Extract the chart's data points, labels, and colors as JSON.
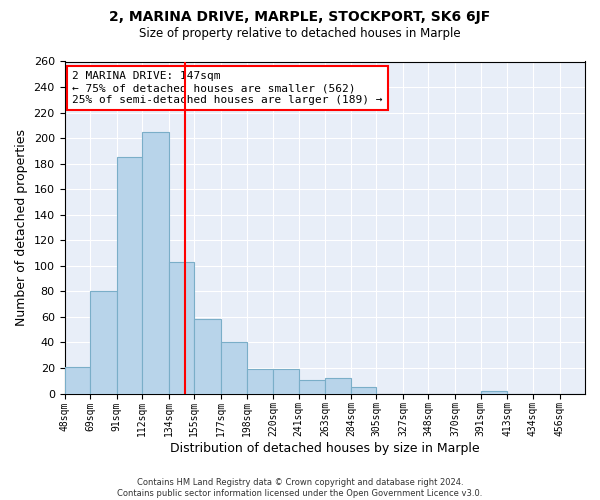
{
  "title": "2, MARINA DRIVE, MARPLE, STOCKPORT, SK6 6JF",
  "subtitle": "Size of property relative to detached houses in Marple",
  "xlabel": "Distribution of detached houses by size in Marple",
  "ylabel": "Number of detached properties",
  "bar_color": "#b8d4ea",
  "bar_edge_color": "#7aaec8",
  "vline_x": 147,
  "vline_color": "red",
  "annotation_title": "2 MARINA DRIVE: 147sqm",
  "annotation_line1": "← 75% of detached houses are smaller (562)",
  "annotation_line2": "25% of semi-detached houses are larger (189) →",
  "annotation_box_color": "white",
  "annotation_box_edge_color": "red",
  "bins": [
    48,
    69,
    91,
    112,
    134,
    155,
    177,
    198,
    220,
    241,
    263,
    284,
    305,
    327,
    348,
    370,
    391,
    413,
    434,
    456,
    477
  ],
  "counts": [
    21,
    80,
    185,
    205,
    103,
    58,
    40,
    19,
    19,
    11,
    12,
    5,
    0,
    0,
    0,
    0,
    2,
    0,
    0,
    0
  ],
  "ylim": [
    0,
    260
  ],
  "yticks": [
    0,
    20,
    40,
    60,
    80,
    100,
    120,
    140,
    160,
    180,
    200,
    220,
    240,
    260
  ],
  "footer_line1": "Contains HM Land Registry data © Crown copyright and database right 2024.",
  "footer_line2": "Contains public sector information licensed under the Open Government Licence v3.0.",
  "background_color": "#ffffff",
  "plot_bg_color": "#e8eef8",
  "grid_color": "#ffffff"
}
